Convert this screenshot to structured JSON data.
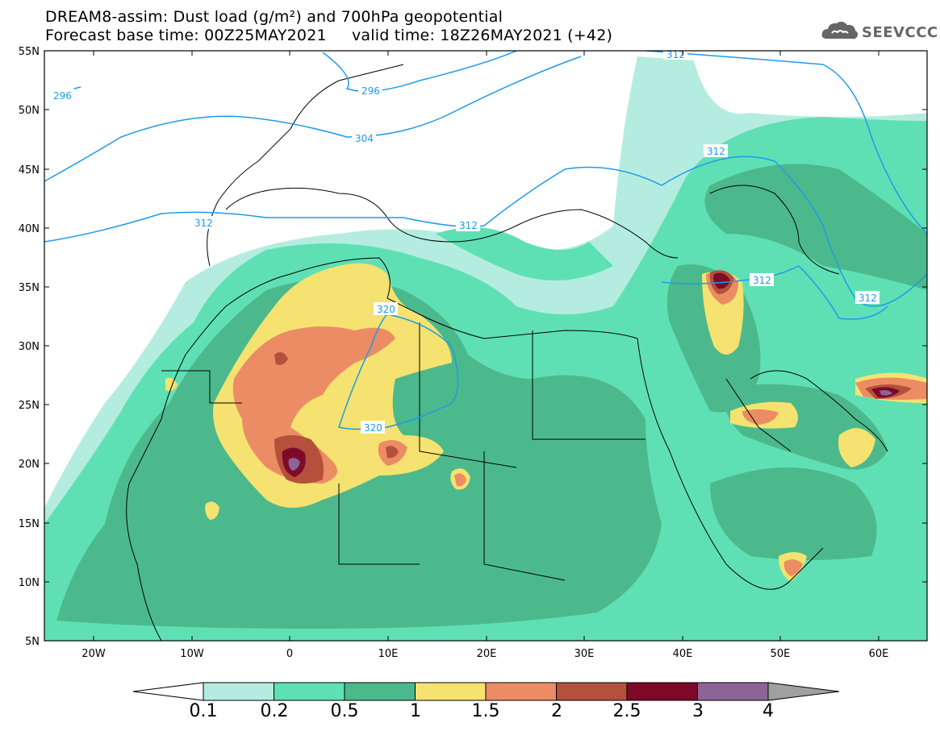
{
  "title": {
    "line1": "DREAM8-assim: Dust load (g/m²) and 700hPa geopotential",
    "line2": "Forecast base time: 00Z25MAY2021     valid time: 18Z26MAY2021 (+42)"
  },
  "logo": {
    "text": "SEEVCCC",
    "icon": "cloud-icon"
  },
  "axes": {
    "lat_labels": [
      "55N",
      "50N",
      "45N",
      "40N",
      "35N",
      "30N",
      "25N",
      "20N",
      "15N",
      "10N",
      "5N"
    ],
    "lon_labels": [
      "20W",
      "10W",
      "0",
      "10E",
      "20E",
      "30E",
      "40E",
      "50E",
      "60E"
    ]
  },
  "contours": {
    "labels": [
      "296",
      "296",
      "304",
      "312",
      "312",
      "312",
      "312",
      "312",
      "312",
      "320",
      "320"
    ]
  },
  "colorbar": {
    "labels": [
      "0.1",
      "0.2",
      "0.5",
      "1",
      "1.5",
      "2",
      "2.5",
      "3",
      "4"
    ],
    "colors": [
      "#ffffff",
      "#b4ede0",
      "#5fe0b4",
      "#4cb98c",
      "#f5e270",
      "#eb8c64",
      "#b4503c",
      "#7d0a28",
      "#8c6496",
      "#a0a0a0"
    ]
  },
  "colors": {
    "contour": "#1e9be9",
    "coast": "#000000"
  }
}
